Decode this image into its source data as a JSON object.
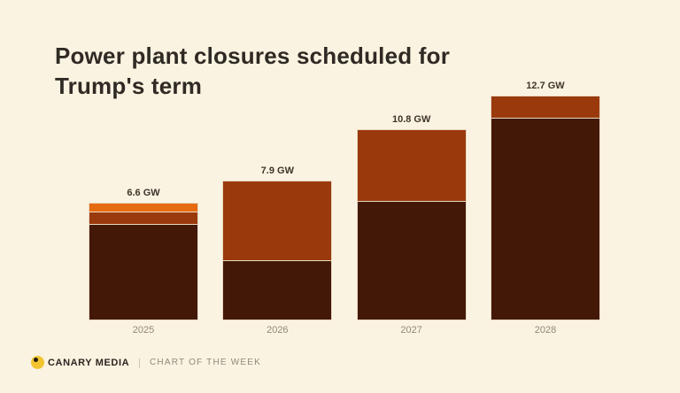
{
  "page": {
    "background": "#fbf3e1"
  },
  "title": {
    "text": "Power plant closures scheduled for Trump's term"
  },
  "chart_data": {
    "type": "bar",
    "stacked": true,
    "orientation": "vertical",
    "unit": "GW",
    "categories": [
      "2025",
      "2026",
      "2027",
      "2028"
    ],
    "totals": [
      6.6,
      7.9,
      10.8,
      12.7
    ],
    "total_labels": [
      "6.6 GW",
      "7.9 GW",
      "10.8 GW",
      "12.7 GW"
    ],
    "series": [
      {
        "name": "dark-brown-segment",
        "color": "#431807",
        "values": [
          5.45,
          3.4,
          6.75,
          11.5
        ]
      },
      {
        "name": "rust-segment",
        "color": "#9a390c",
        "values": [
          0.7,
          4.5,
          4.05,
          1.2
        ]
      },
      {
        "name": "orange-segment",
        "color": "#e56a10",
        "values": [
          0.45,
          0,
          0,
          0
        ]
      }
    ],
    "ylim": [
      0,
      13.5
    ],
    "grid": false,
    "legend": "none",
    "axes_shown": false,
    "value_label_color": "#3d342a",
    "category_label_color": "#8f887b"
  },
  "footer": {
    "brand": "CANARY MEDIA",
    "separator": "|",
    "series_label": "CHART OF THE WEEK",
    "logo_color": "#f2c430",
    "logo_dot_color": "#211b12"
  }
}
